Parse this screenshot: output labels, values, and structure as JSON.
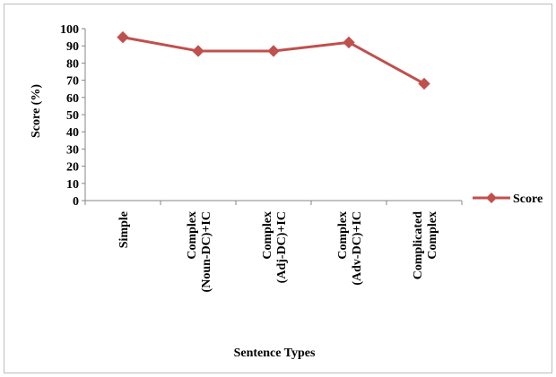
{
  "chart_data": {
    "type": "line",
    "ylabel": "Score (%)",
    "xlabel": "Sentence Types",
    "categories": [
      [
        "Simple"
      ],
      [
        "Complex",
        "(Noun-DC)+IC"
      ],
      [
        "Complex",
        "(Adj-DC)+IC"
      ],
      [
        "Complex",
        "(Adv-DC)+IC"
      ],
      [
        "Complicated",
        "Complex"
      ]
    ],
    "series": [
      {
        "name": "Score",
        "values": [
          95,
          87,
          87,
          92,
          68
        ],
        "color": "#c0504d",
        "marker": "diamond"
      }
    ],
    "ylim": [
      0,
      100
    ],
    "yticks": [
      0,
      10,
      20,
      30,
      40,
      50,
      60,
      70,
      80,
      90,
      100
    ],
    "grid": false,
    "legend": "right"
  }
}
